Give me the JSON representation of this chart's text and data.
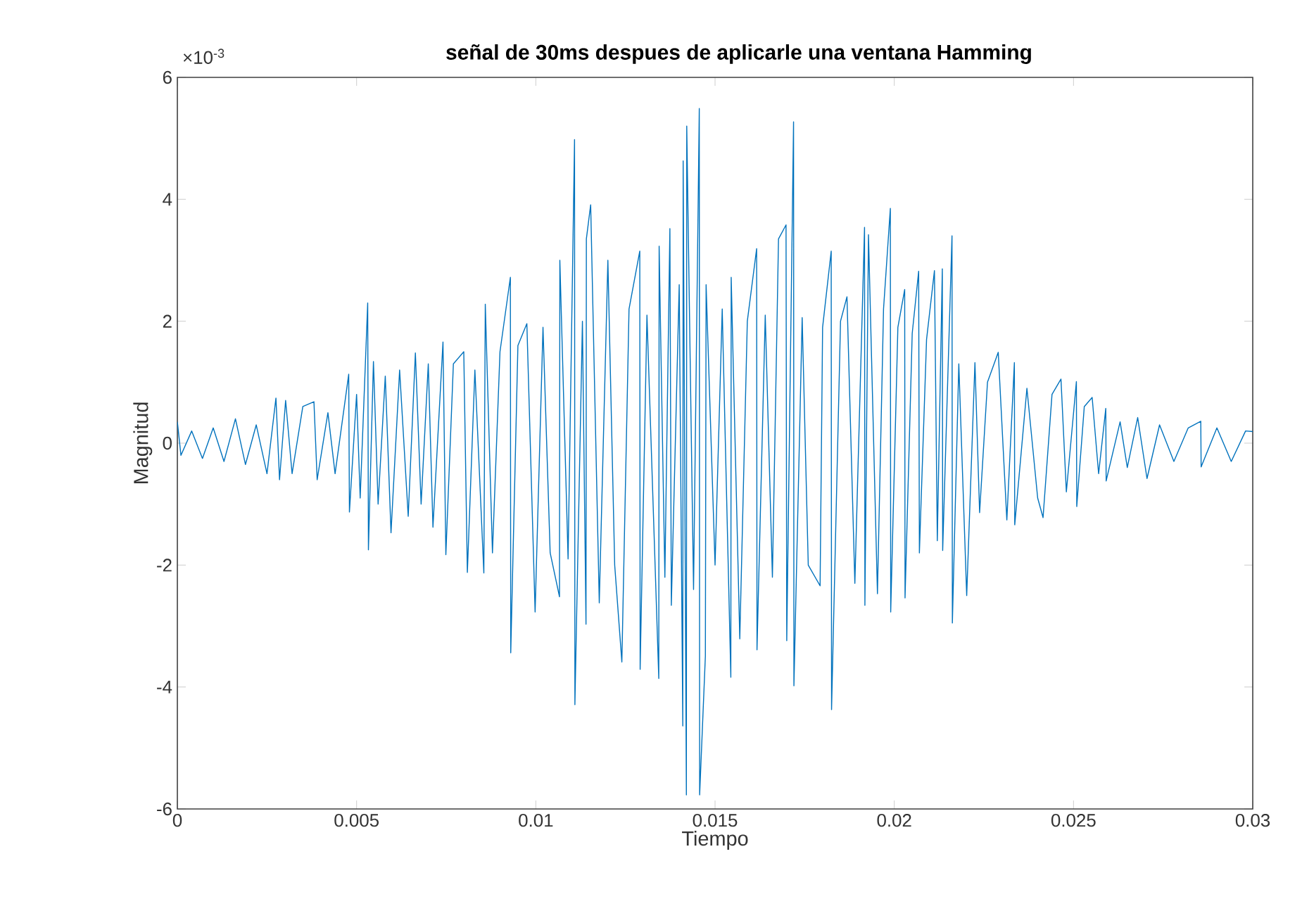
{
  "chart_data": {
    "type": "line",
    "title": "señal de 30ms despues de aplicarle una ventana Hamming",
    "xlabel": "Tiempo",
    "ylabel": "Magnitud",
    "annotations": [
      "×10$^{-3}$"
    ],
    "xlim": [
      0,
      0.03
    ],
    "ylim": [
      -6,
      6
    ],
    "xticks": [
      0,
      0.005,
      0.01,
      0.015,
      0.02,
      0.025,
      0.03
    ],
    "yticks": [
      -6,
      -4,
      -2,
      0,
      2,
      4,
      6
    ],
    "grid": false,
    "line_style": "solid",
    "x": [
      0.0,
      0.0001,
      0.0004,
      0.0007,
      0.001,
      0.0013,
      0.00162,
      0.0019,
      0.0022,
      0.0025,
      0.00275,
      0.00285,
      0.00302,
      0.0032,
      0.0035,
      0.00381,
      0.0039,
      0.0042,
      0.0044,
      0.00478,
      0.0048,
      0.005,
      0.0051,
      0.00531,
      0.00533,
      0.00547,
      0.0056,
      0.0058,
      0.00596,
      0.0062,
      0.00644,
      0.00664,
      0.0068,
      0.007,
      0.00713,
      0.00741,
      0.00749,
      0.0077,
      0.00799,
      0.00809,
      0.0083,
      0.00855,
      0.00859,
      0.00879,
      0.009,
      0.00929,
      0.0093,
      0.0095,
      0.00975,
      0.00998,
      0.0102,
      0.0104,
      0.01066,
      0.01067,
      0.0109,
      0.01108,
      0.01109,
      0.0113,
      0.0114,
      0.01141,
      0.01153,
      0.01177,
      0.01201,
      0.0122,
      0.0124,
      0.0126,
      0.0129,
      0.01291,
      0.0131,
      0.01343,
      0.01344,
      0.0136,
      0.01374,
      0.01378,
      0.014,
      0.0141,
      0.01411,
      0.0142,
      0.01421,
      0.0144,
      0.01456,
      0.01457,
      0.01473,
      0.01475,
      0.015,
      0.0152,
      0.01544,
      0.01545,
      0.01569,
      0.0159,
      0.01616,
      0.01617,
      0.0164,
      0.0166,
      0.01677,
      0.01698,
      0.017,
      0.01719,
      0.0172,
      0.01743,
      0.0176,
      0.01793,
      0.018,
      0.01824,
      0.01825,
      0.0185,
      0.01868,
      0.0189,
      0.01917,
      0.01918,
      0.01928,
      0.01953,
      0.0197,
      0.01989,
      0.0199,
      0.0201,
      0.02029,
      0.0203,
      0.0205,
      0.02068,
      0.0207,
      0.0209,
      0.02112,
      0.0212,
      0.02134,
      0.02135,
      0.02161,
      0.02162,
      0.0218,
      0.02202,
      0.02225,
      0.02238,
      0.0226,
      0.0229,
      0.02314,
      0.02335,
      0.02336,
      0.0237,
      0.024,
      0.02415,
      0.0244,
      0.02465,
      0.0248,
      0.02508,
      0.02509,
      0.0253,
      0.02552,
      0.0257,
      0.0259,
      0.02591,
      0.0263,
      0.0265,
      0.02679,
      0.02705,
      0.0274,
      0.0278,
      0.0282,
      0.02855,
      0.02856,
      0.029,
      0.0294,
      0.0298,
      0.03
    ],
    "series": [
      {
        "color": "#0072bd",
        "values": [
          0.35,
          -0.2,
          0.2,
          -0.25,
          0.25,
          -0.3,
          0.4,
          -0.35,
          0.3,
          -0.5,
          0.74,
          -0.6,
          0.7,
          -0.5,
          0.6,
          0.68,
          -0.6,
          0.5,
          -0.5,
          1.13,
          -1.13,
          0.8,
          -0.9,
          2.3,
          -1.75,
          1.34,
          -1.0,
          1.1,
          -1.47,
          1.2,
          -1.2,
          1.48,
          -1.0,
          1.3,
          -1.38,
          1.66,
          -1.83,
          1.3,
          1.5,
          -2.12,
          1.2,
          -2.13,
          2.28,
          -1.8,
          1.5,
          2.72,
          -3.44,
          1.6,
          1.96,
          -2.77,
          1.9,
          -1.8,
          -2.52,
          3.0,
          -1.9,
          4.98,
          -4.29,
          2.0,
          -2.97,
          3.35,
          3.91,
          -2.62,
          3.0,
          -2.0,
          -3.59,
          2.2,
          3.15,
          -3.71,
          2.1,
          -3.86,
          3.23,
          -2.2,
          3.52,
          -2.66,
          2.6,
          -4.64,
          4.63,
          -5.77,
          5.2,
          -2.4,
          5.49,
          -5.77,
          -3.49,
          2.6,
          -2.0,
          2.2,
          -3.84,
          2.72,
          -3.21,
          2.0,
          3.19,
          -3.39,
          2.1,
          -2.2,
          3.35,
          3.58,
          -3.24,
          5.27,
          -3.98,
          2.06,
          -2.0,
          -2.34,
          1.9,
          3.15,
          -4.37,
          2.0,
          2.4,
          -2.3,
          3.54,
          -2.66,
          3.42,
          -2.47,
          2.2,
          3.85,
          -2.77,
          1.9,
          2.52,
          -2.54,
          1.8,
          2.82,
          -1.8,
          1.7,
          2.83,
          -1.6,
          2.86,
          -1.76,
          3.4,
          -2.95,
          1.3,
          -2.5,
          1.32,
          -1.14,
          1.0,
          1.49,
          -1.26,
          1.32,
          -1.34,
          0.9,
          -0.9,
          -1.22,
          0.8,
          1.05,
          -0.8,
          1.01,
          -1.04,
          0.6,
          0.75,
          -0.5,
          0.57,
          -0.62,
          0.35,
          -0.4,
          0.42,
          -0.58,
          0.3,
          -0.3,
          0.25,
          0.36,
          -0.39,
          0.25,
          -0.3,
          0.2,
          0.19
        ]
      }
    ]
  }
}
